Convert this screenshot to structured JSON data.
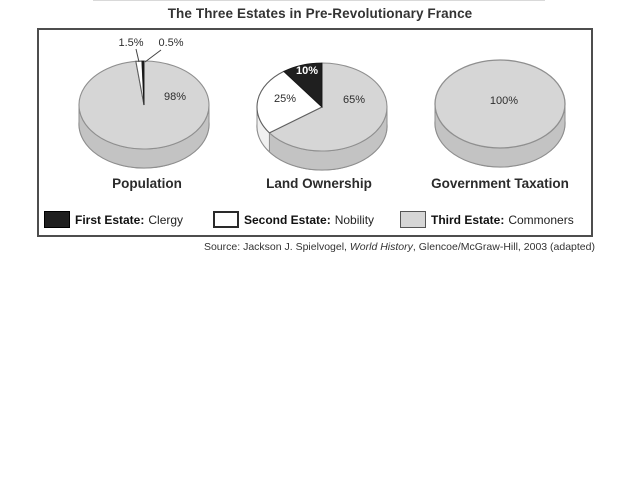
{
  "page_title": "The Three Estates in Pre-Revolutionary France",
  "chart_data": [
    {
      "type": "pie",
      "title": "Population",
      "slices": [
        {
          "estate": "Third Estate",
          "value": 98,
          "label": "98%",
          "color": "#d6d6d6"
        },
        {
          "estate": "Second Estate",
          "value": 1.5,
          "label": "1.5%",
          "color": "#ffffff"
        },
        {
          "estate": "First Estate",
          "value": 0.5,
          "label": "0.5%",
          "color": "#1f1f1f"
        }
      ]
    },
    {
      "type": "pie",
      "title": "Land Ownership",
      "slices": [
        {
          "estate": "Third Estate",
          "value": 65,
          "label": "65%",
          "color": "#d6d6d6"
        },
        {
          "estate": "Second Estate",
          "value": 25,
          "label": "25%",
          "color": "#ffffff"
        },
        {
          "estate": "First Estate",
          "value": 10,
          "label": "10%",
          "color": "#1f1f1f"
        }
      ]
    },
    {
      "type": "pie",
      "title": "Government Taxation",
      "slices": [
        {
          "estate": "Third Estate",
          "value": 100,
          "label": "100%",
          "color": "#d6d6d6"
        }
      ]
    }
  ],
  "legend": {
    "items": [
      {
        "title": "First Estate:",
        "name": "Clergy",
        "swatch_color": "#1f1f1f"
      },
      {
        "title": "Second Estate:",
        "name": "Nobility",
        "swatch_color": "#ffffff"
      },
      {
        "title": "Third Estate:",
        "name": "Commoners",
        "swatch_color": "#d6d6d6"
      }
    ]
  },
  "source": {
    "prefix": "Source: Jackson J. Spielvogel, ",
    "work": "World History",
    "suffix": ", Glencoe/McGraw-Hill, 2003 (adapted)"
  }
}
